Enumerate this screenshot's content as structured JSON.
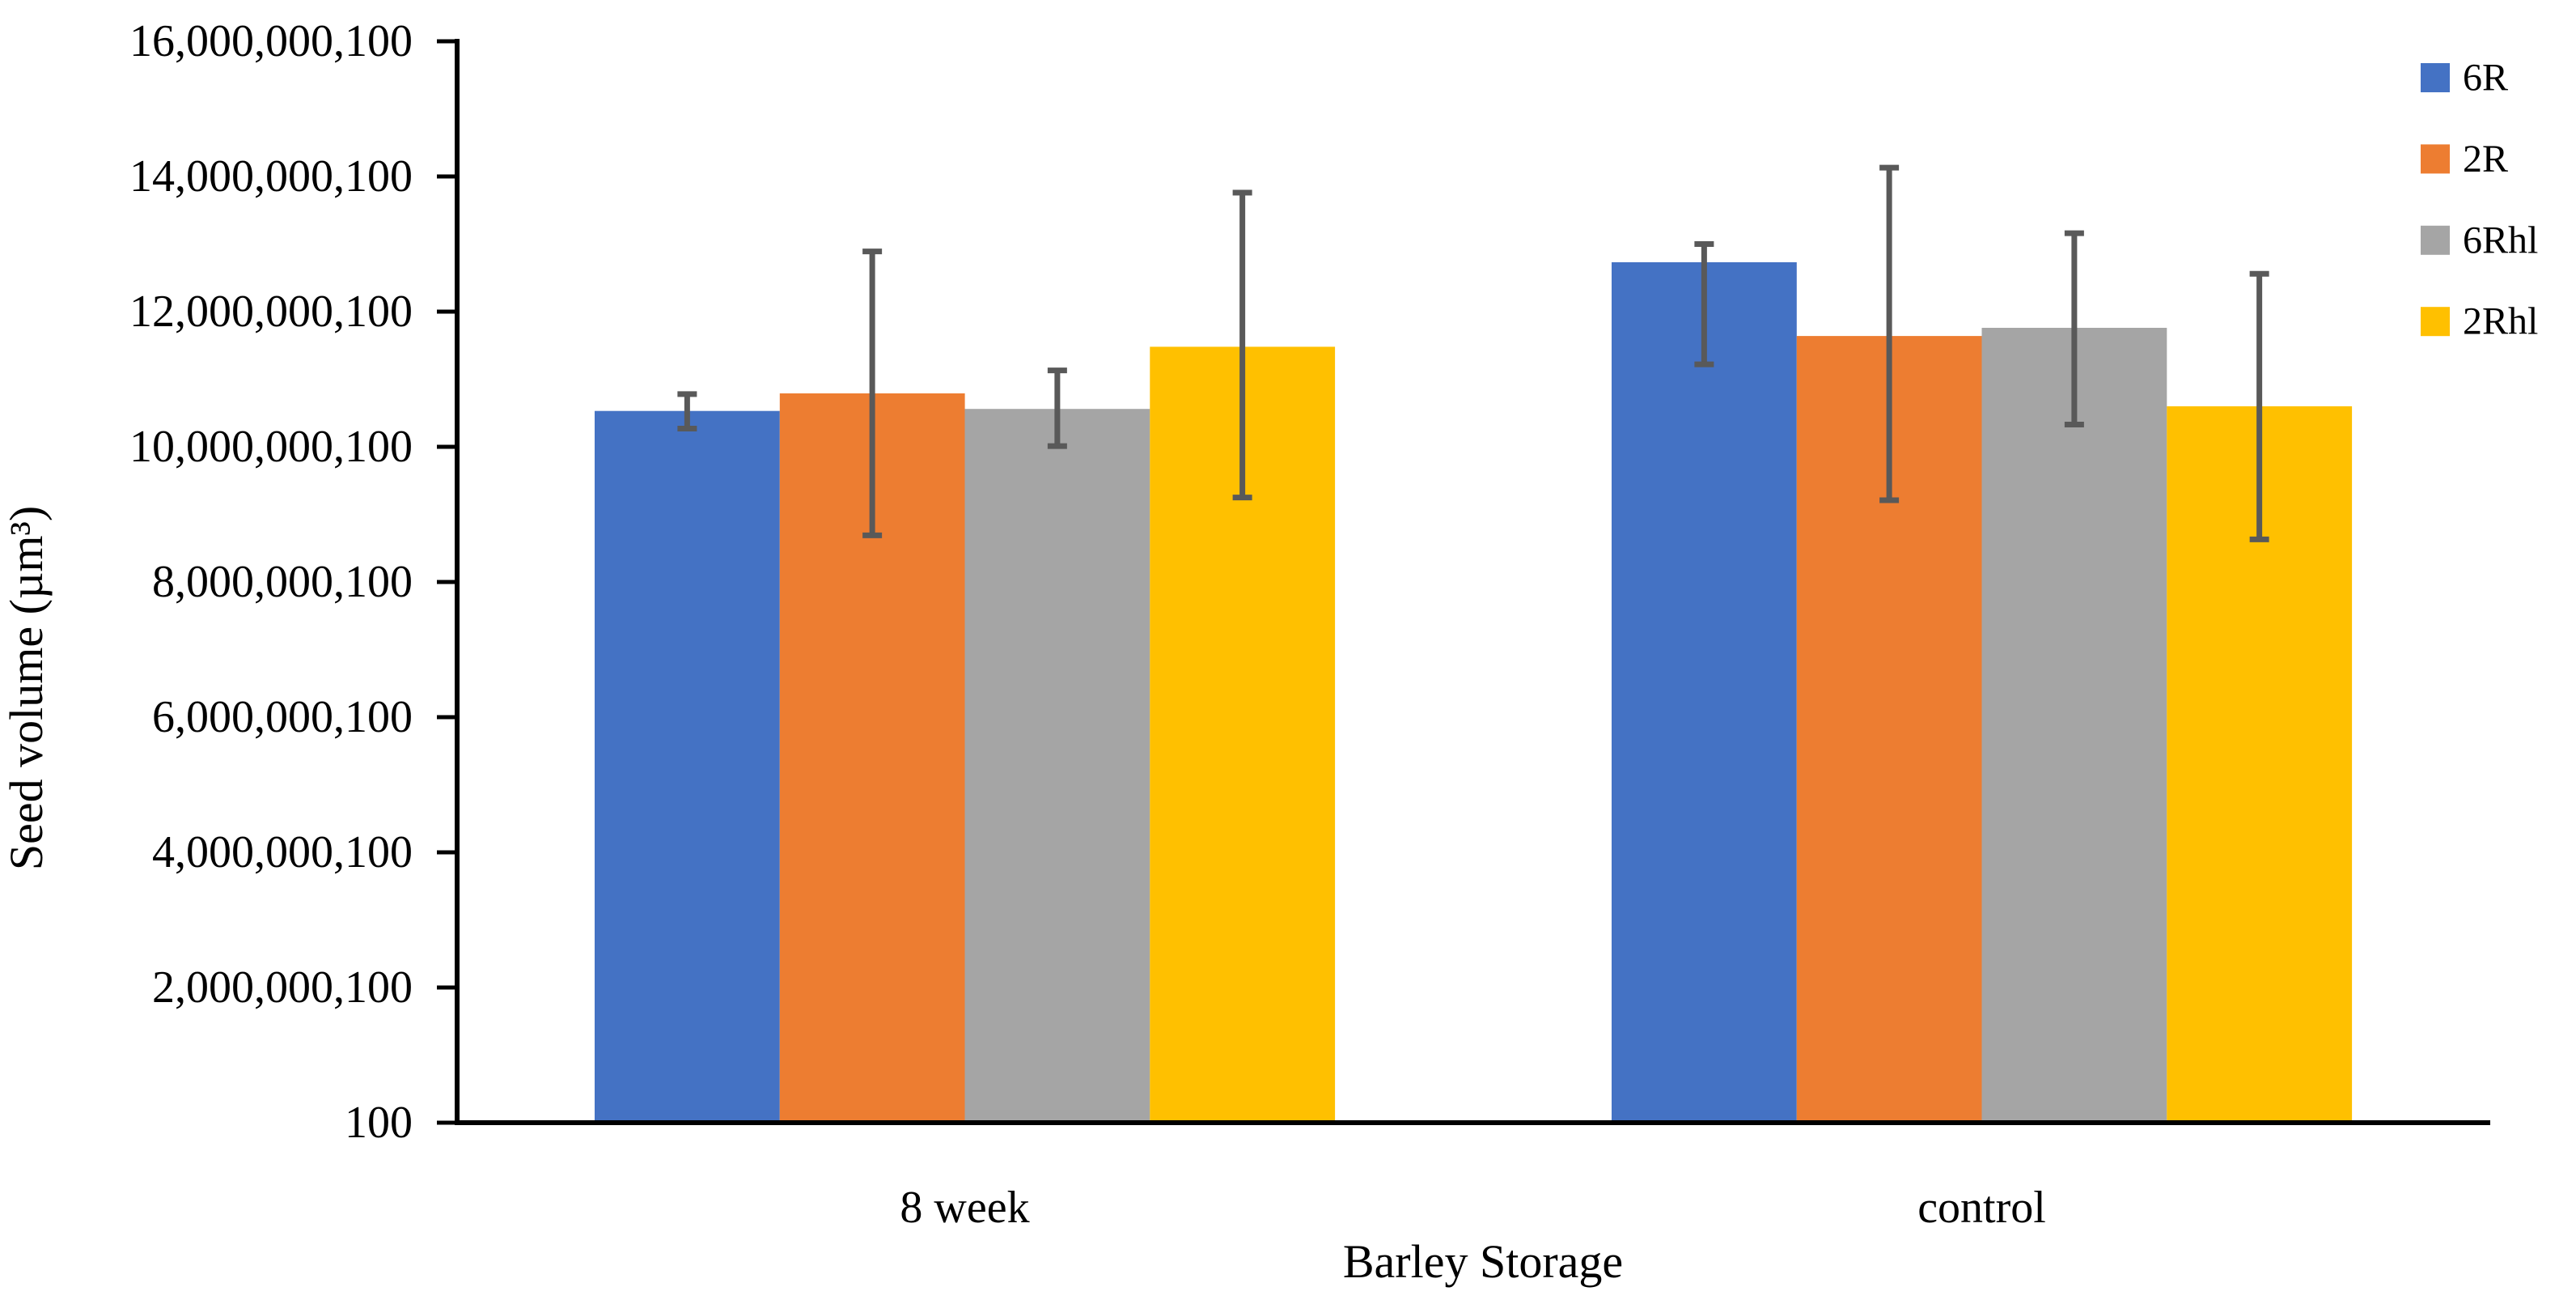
{
  "chart_data": {
    "type": "bar",
    "title": "",
    "xlabel": "Barley Storage",
    "ylabel": "Seed volume (µm³)",
    "categories": [
      "8 week",
      "control"
    ],
    "series": [
      {
        "name": "6R",
        "color": "#4472C4",
        "values": [
          10530000000,
          12730000000
        ],
        "err_plus": [
          250000000,
          270000000
        ],
        "err_minus": [
          260000000,
          1510000000
        ]
      },
      {
        "name": "2R",
        "color": "#ED7D31",
        "values": [
          10790000000,
          11640000000
        ],
        "err_plus": [
          2100000000,
          2490000000
        ],
        "err_minus": [
          2100000000,
          2430000000
        ]
      },
      {
        "name": "6Rhl",
        "color": "#A5A5A5",
        "values": [
          10560000000,
          11760000000
        ],
        "err_plus": [
          570000000,
          1400000000
        ],
        "err_minus": [
          550000000,
          1430000000
        ]
      },
      {
        "name": "2Rhl",
        "color": "#FFC000",
        "values": [
          11480000000,
          10600000000
        ],
        "err_plus": [
          2280000000,
          1960000000
        ],
        "err_minus": [
          2230000000,
          1970000000
        ]
      }
    ],
    "y_axis": {
      "min": 100,
      "max": 16000000100,
      "step": 2000000000,
      "tick_labels": [
        "16,000,000,100",
        "14,000,000,100",
        "12,000,000,100",
        "10,000,000,100",
        "8,000,000,100",
        "6,000,000,100",
        "4,000,000,100",
        "2,000,000,100",
        "100"
      ]
    },
    "legend": {
      "position": "top-right",
      "entries": [
        "6R",
        "2R",
        "6Rhl",
        "2Rhl"
      ]
    },
    "grid": false,
    "error_bar_color": "#595959",
    "axis_color": "#000000"
  }
}
